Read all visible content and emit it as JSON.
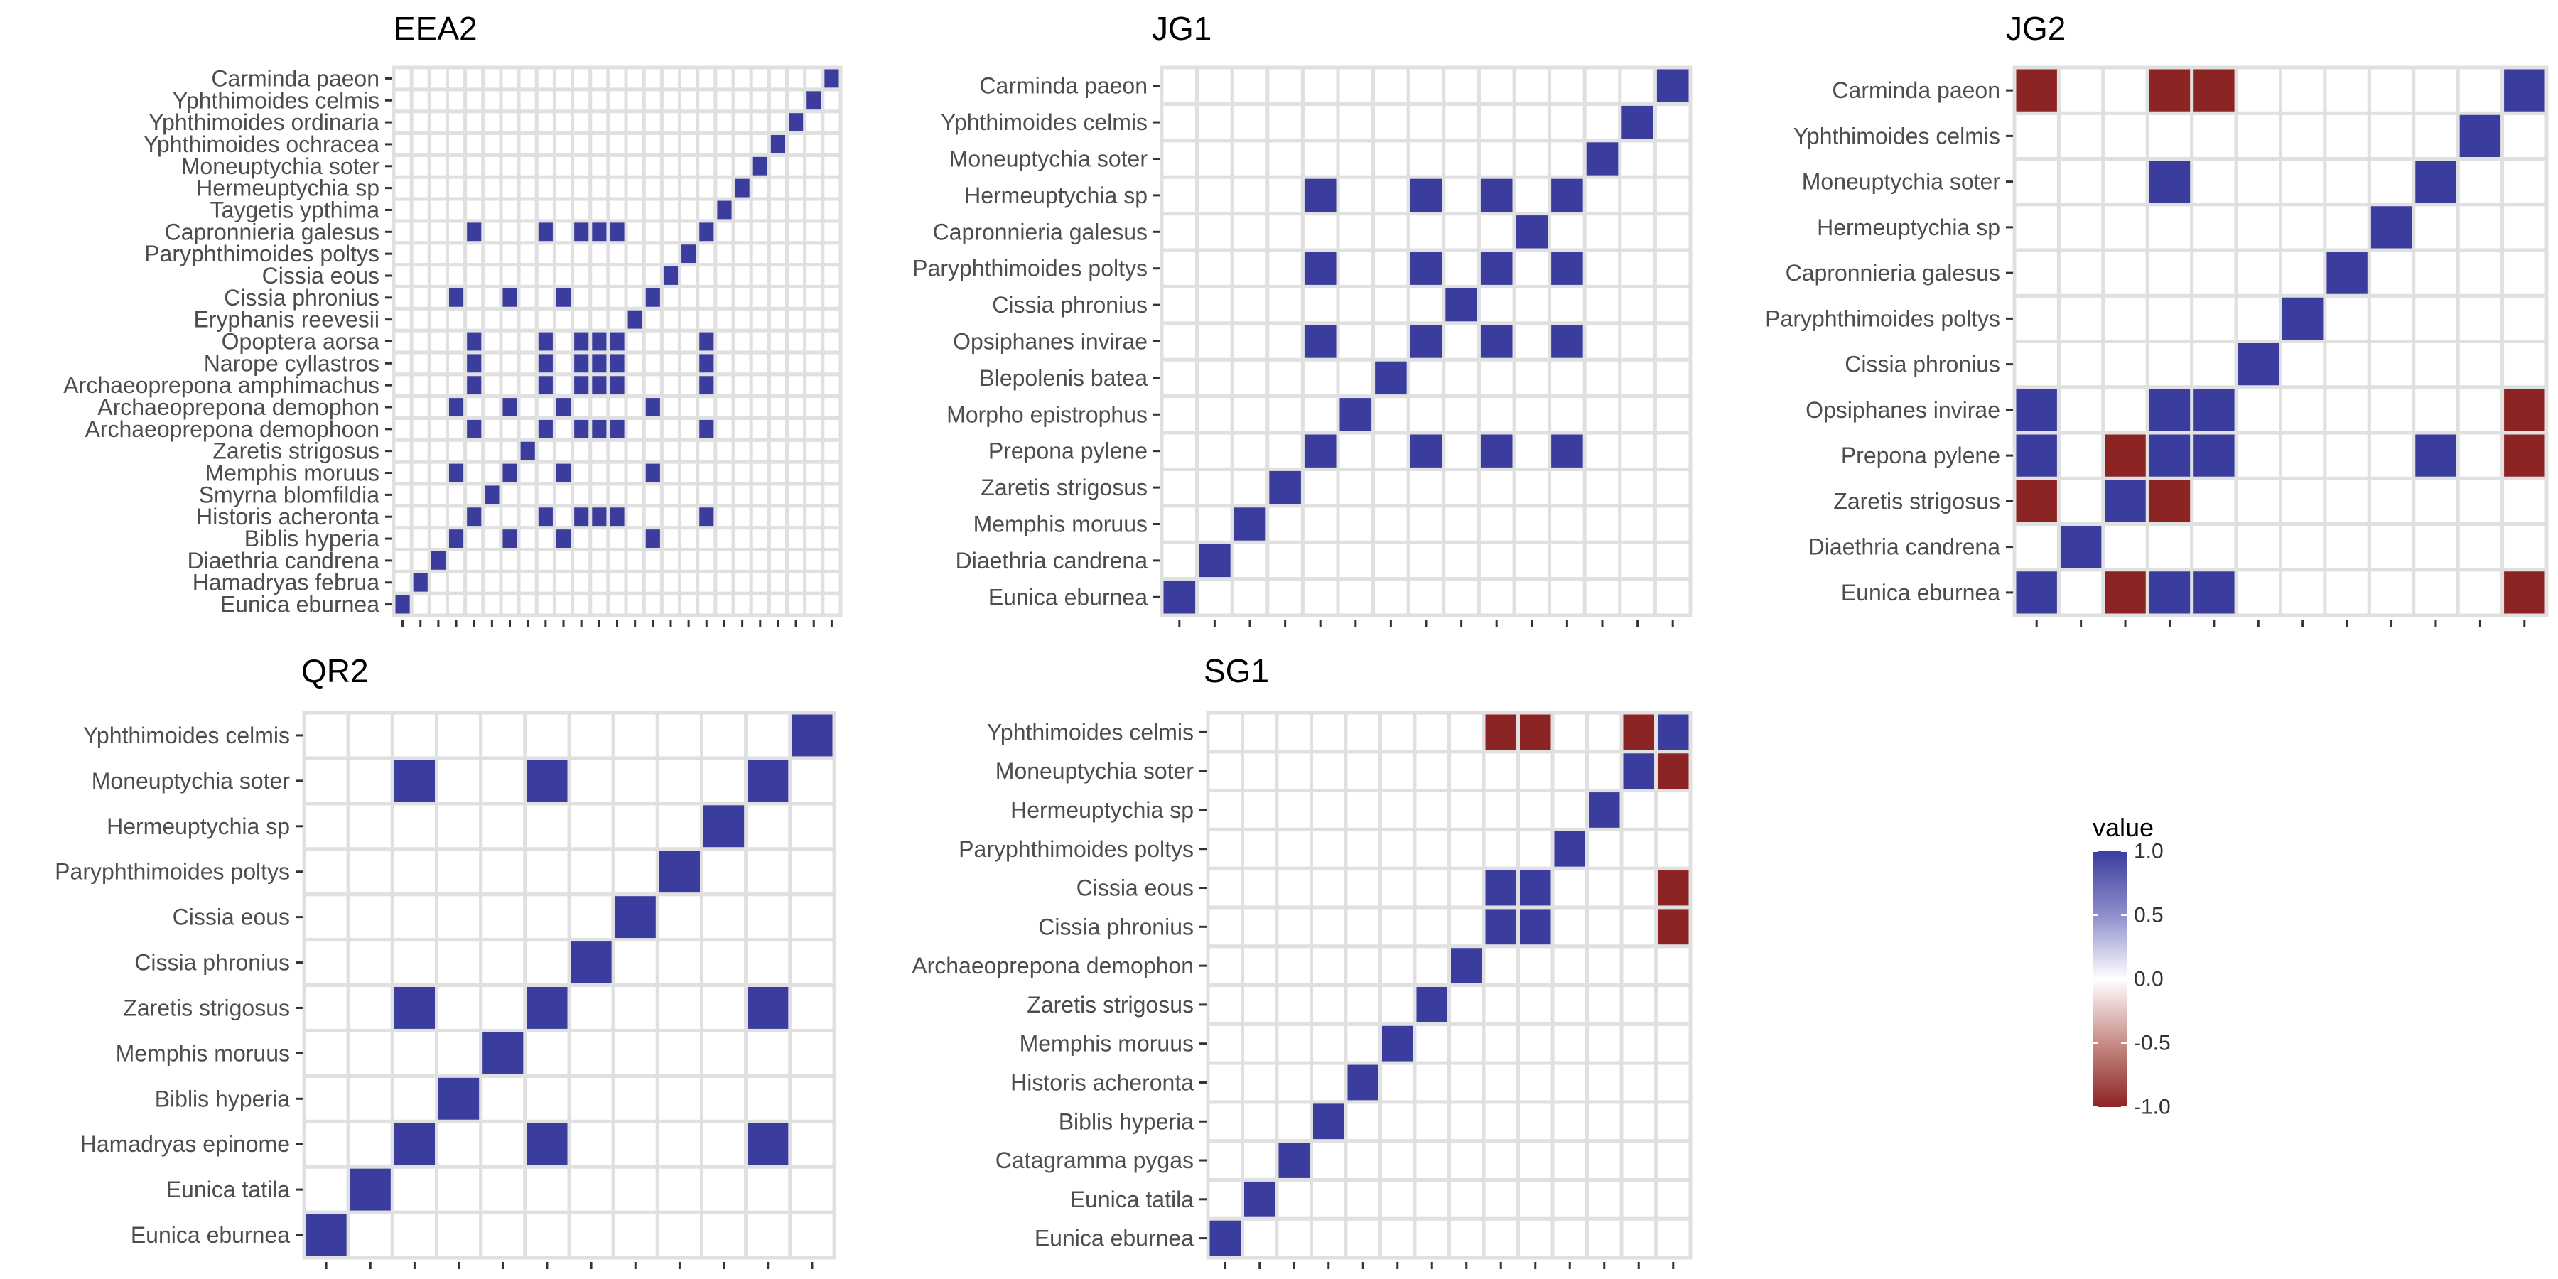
{
  "colors": {
    "positive": "#3a3d9e",
    "negative": "#8c2424",
    "zero": "#ffffff",
    "grid": "#e0e0e0",
    "axis_text": "#4d4d4d"
  },
  "legend": {
    "title": "value",
    "ticks": [
      1.0,
      0.5,
      0.0,
      -0.5,
      -1.0
    ],
    "tick_labels": [
      "1.0",
      "0.5",
      "0.0",
      "-0.5",
      "-1.0"
    ],
    "range": [
      -1,
      1
    ],
    "placement": "right"
  },
  "chart_data": [
    {
      "type": "heatmap",
      "title": "EEA2",
      "species": [
        "Eunica eburnea",
        "Hamadryas februa",
        "Diaethria candrena",
        "Biblis hyperia",
        "Historis acheronta",
        "Smyrna blomfildia",
        "Memphis moruus",
        "Zaretis strigosus",
        "Archaeoprepona demophoon",
        "Archaeoprepona demophon",
        "Archaeoprepona amphimachus",
        "Narope cyllastros",
        "Opoptera aorsa",
        "Eryphanis reevesii",
        "Cissia phronius",
        "Cissia eous",
        "Paryphthimoides poltys",
        "Capronnieria galesus",
        "Taygetis ypthima",
        "Hermeuptychia sp",
        "Moneuptychia soter",
        "Yphthimoides ochracea",
        "Yphthimoides ordinaria",
        "Yphthimoides celmis",
        "Carminda paeon"
      ],
      "cells": [
        [
          0,
          0,
          1
        ],
        [
          1,
          1,
          1
        ],
        [
          2,
          2,
          1
        ],
        [
          3,
          3,
          1
        ],
        [
          6,
          3,
          1
        ],
        [
          9,
          3,
          1
        ],
        [
          14,
          3,
          1
        ],
        [
          4,
          4,
          1
        ],
        [
          8,
          4,
          1
        ],
        [
          10,
          4,
          1
        ],
        [
          11,
          4,
          1
        ],
        [
          12,
          4,
          1
        ],
        [
          17,
          4,
          1
        ],
        [
          5,
          5,
          1
        ],
        [
          6,
          6,
          1
        ],
        [
          3,
          6,
          1
        ],
        [
          9,
          6,
          1
        ],
        [
          14,
          6,
          1
        ],
        [
          7,
          7,
          1
        ],
        [
          8,
          8,
          1
        ],
        [
          4,
          8,
          1
        ],
        [
          10,
          8,
          1
        ],
        [
          11,
          8,
          1
        ],
        [
          12,
          8,
          1
        ],
        [
          17,
          8,
          1
        ],
        [
          9,
          9,
          1
        ],
        [
          3,
          9,
          1
        ],
        [
          6,
          9,
          1
        ],
        [
          14,
          9,
          1
        ],
        [
          10,
          10,
          1
        ],
        [
          4,
          10,
          1
        ],
        [
          8,
          10,
          1
        ],
        [
          11,
          10,
          1
        ],
        [
          12,
          10,
          1
        ],
        [
          17,
          10,
          1
        ],
        [
          11,
          11,
          1
        ],
        [
          4,
          11,
          1
        ],
        [
          8,
          11,
          1
        ],
        [
          10,
          11,
          1
        ],
        [
          12,
          11,
          1
        ],
        [
          17,
          11,
          1
        ],
        [
          12,
          12,
          1
        ],
        [
          4,
          12,
          1
        ],
        [
          8,
          12,
          1
        ],
        [
          10,
          12,
          1
        ],
        [
          11,
          12,
          1
        ],
        [
          17,
          12,
          1
        ],
        [
          13,
          13,
          1
        ],
        [
          14,
          14,
          1
        ],
        [
          3,
          14,
          1
        ],
        [
          6,
          14,
          1
        ],
        [
          9,
          14,
          1
        ],
        [
          15,
          15,
          1
        ],
        [
          16,
          16,
          1
        ],
        [
          17,
          17,
          1
        ],
        [
          4,
          17,
          1
        ],
        [
          8,
          17,
          1
        ],
        [
          10,
          17,
          1
        ],
        [
          11,
          17,
          1
        ],
        [
          12,
          17,
          1
        ],
        [
          18,
          18,
          1
        ],
        [
          19,
          19,
          1
        ],
        [
          20,
          20,
          1
        ],
        [
          21,
          21,
          1
        ],
        [
          22,
          22,
          1
        ],
        [
          23,
          23,
          1
        ],
        [
          24,
          24,
          1
        ]
      ]
    },
    {
      "type": "heatmap",
      "title": "JG1",
      "species": [
        "Eunica eburnea",
        "Diaethria candrena",
        "Memphis moruus",
        "Zaretis strigosus",
        "Prepona pylene",
        "Morpho epistrophus",
        "Blepolenis batea",
        "Opsiphanes invirae",
        "Cissia phronius",
        "Paryphthimoides poltys",
        "Capronnieria galesus",
        "Hermeuptychia sp",
        "Moneuptychia soter",
        "Yphthimoides celmis",
        "Carminda paeon"
      ],
      "cells": [
        [
          0,
          0,
          1
        ],
        [
          1,
          1,
          1
        ],
        [
          2,
          2,
          1
        ],
        [
          3,
          3,
          1
        ],
        [
          4,
          4,
          1
        ],
        [
          7,
          4,
          1
        ],
        [
          9,
          4,
          1
        ],
        [
          11,
          4,
          1
        ],
        [
          5,
          5,
          1
        ],
        [
          6,
          6,
          1
        ],
        [
          7,
          7,
          1
        ],
        [
          4,
          7,
          1
        ],
        [
          9,
          7,
          1
        ],
        [
          11,
          7,
          1
        ],
        [
          8,
          8,
          1
        ],
        [
          9,
          9,
          1
        ],
        [
          4,
          9,
          1
        ],
        [
          7,
          9,
          1
        ],
        [
          11,
          9,
          1
        ],
        [
          10,
          10,
          1
        ],
        [
          11,
          11,
          1
        ],
        [
          4,
          11,
          1
        ],
        [
          7,
          11,
          1
        ],
        [
          9,
          11,
          1
        ],
        [
          12,
          12,
          1
        ],
        [
          13,
          13,
          1
        ],
        [
          14,
          14,
          1
        ]
      ]
    },
    {
      "type": "heatmap",
      "title": "JG2",
      "species": [
        "Eunica eburnea",
        "Diaethria candrena",
        "Zaretis strigosus",
        "Prepona pylene",
        "Opsiphanes invirae",
        "Cissia phronius",
        "Paryphthimoides poltys",
        "Capronnieria galesus",
        "Hermeuptychia sp",
        "Moneuptychia soter",
        "Yphthimoides celmis",
        "Carminda paeon"
      ],
      "cells": [
        [
          0,
          0,
          1
        ],
        [
          2,
          0,
          -1
        ],
        [
          3,
          0,
          1
        ],
        [
          4,
          0,
          1
        ],
        [
          11,
          0,
          -1
        ],
        [
          1,
          1,
          1
        ],
        [
          0,
          2,
          -1
        ],
        [
          2,
          2,
          1
        ],
        [
          3,
          2,
          -1
        ],
        [
          0,
          3,
          1
        ],
        [
          2,
          3,
          -1
        ],
        [
          3,
          3,
          1
        ],
        [
          4,
          3,
          1
        ],
        [
          9,
          3,
          1
        ],
        [
          11,
          3,
          -1
        ],
        [
          0,
          4,
          1
        ],
        [
          3,
          4,
          1
        ],
        [
          4,
          4,
          1
        ],
        [
          11,
          4,
          -1
        ],
        [
          5,
          5,
          1
        ],
        [
          6,
          6,
          1
        ],
        [
          7,
          7,
          1
        ],
        [
          8,
          8,
          1
        ],
        [
          3,
          9,
          1
        ],
        [
          9,
          9,
          1
        ],
        [
          10,
          10,
          1
        ],
        [
          0,
          11,
          -1
        ],
        [
          3,
          11,
          -1
        ],
        [
          4,
          11,
          -1
        ],
        [
          11,
          11,
          1
        ]
      ]
    },
    {
      "type": "heatmap",
      "title": "QR2",
      "species": [
        "Eunica eburnea",
        "Eunica tatila",
        "Hamadryas epinome",
        "Biblis hyperia",
        "Memphis moruus",
        "Zaretis strigosus",
        "Cissia phronius",
        "Cissia eous",
        "Paryphthimoides poltys",
        "Hermeuptychia sp",
        "Moneuptychia soter",
        "Yphthimoides celmis"
      ],
      "cells": [
        [
          0,
          0,
          1
        ],
        [
          1,
          1,
          1
        ],
        [
          2,
          2,
          1
        ],
        [
          5,
          2,
          1
        ],
        [
          10,
          2,
          1
        ],
        [
          3,
          3,
          1
        ],
        [
          4,
          4,
          1
        ],
        [
          5,
          5,
          1
        ],
        [
          2,
          5,
          1
        ],
        [
          10,
          5,
          1
        ],
        [
          6,
          6,
          1
        ],
        [
          7,
          7,
          1
        ],
        [
          8,
          8,
          1
        ],
        [
          9,
          9,
          1
        ],
        [
          10,
          10,
          1
        ],
        [
          2,
          10,
          1
        ],
        [
          5,
          10,
          1
        ],
        [
          11,
          11,
          1
        ]
      ]
    },
    {
      "type": "heatmap",
      "title": "SG1",
      "species": [
        "Eunica eburnea",
        "Eunica tatila",
        "Catagramma pygas",
        "Biblis hyperia",
        "Historis acheronta",
        "Memphis moruus",
        "Zaretis strigosus",
        "Archaeoprepona demophon",
        "Cissia phronius",
        "Cissia eous",
        "Paryphthimoides poltys",
        "Hermeuptychia sp",
        "Moneuptychia soter",
        "Yphthimoides celmis"
      ],
      "cells": [
        [
          0,
          0,
          1
        ],
        [
          1,
          1,
          1
        ],
        [
          2,
          2,
          1
        ],
        [
          3,
          3,
          1
        ],
        [
          4,
          4,
          1
        ],
        [
          5,
          5,
          1
        ],
        [
          6,
          6,
          1
        ],
        [
          7,
          7,
          1
        ],
        [
          8,
          8,
          1
        ],
        [
          9,
          8,
          1
        ],
        [
          13,
          8,
          -1
        ],
        [
          8,
          9,
          1
        ],
        [
          9,
          9,
          1
        ],
        [
          13,
          9,
          -1
        ],
        [
          10,
          10,
          1
        ],
        [
          11,
          11,
          1
        ],
        [
          12,
          12,
          1
        ],
        [
          13,
          12,
          -1
        ],
        [
          8,
          13,
          -1
        ],
        [
          9,
          13,
          -1
        ],
        [
          12,
          13,
          -1
        ],
        [
          13,
          13,
          1
        ]
      ]
    }
  ]
}
